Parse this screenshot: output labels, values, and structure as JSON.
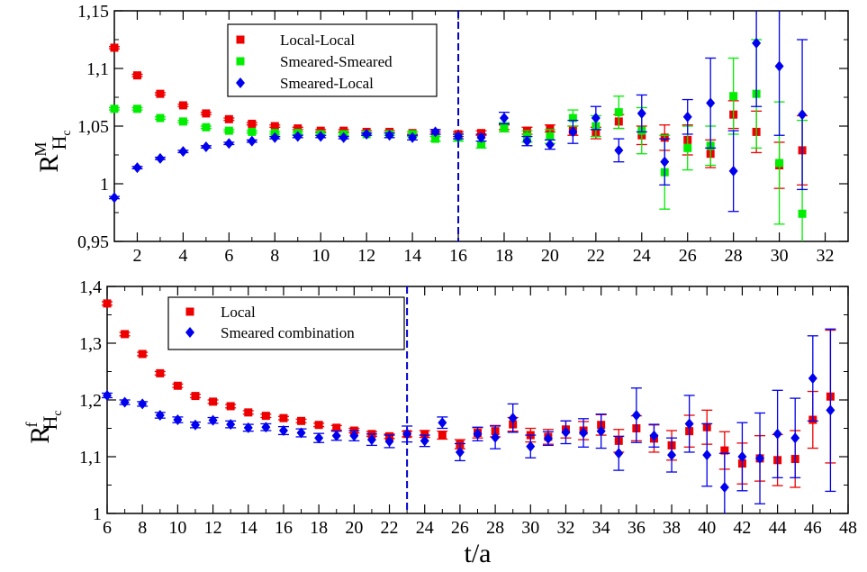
{
  "chart_data": [
    {
      "type": "scatter",
      "xlabel": "",
      "ylabel": "R",
      "ylabel_superscript": "M",
      "ylabel_subscript": "H",
      "ylabel_subsubscript": "c",
      "xlim": [
        1,
        33
      ],
      "ylim": [
        0.95,
        1.15
      ],
      "xticks": [
        2,
        4,
        6,
        8,
        10,
        12,
        14,
        16,
        18,
        20,
        22,
        24,
        26,
        28,
        30,
        32
      ],
      "xtick_labels": [
        "2",
        "4",
        "6",
        "8",
        "10",
        "12",
        "14",
        "16",
        "18",
        "20",
        "22",
        "24",
        "26",
        "28",
        "30",
        "32"
      ],
      "yticks": [
        0.95,
        1.0,
        1.05,
        1.1,
        1.15
      ],
      "ytick_labels": [
        "0,95",
        "1",
        "1,05",
        "1,1",
        "1,15"
      ],
      "vline_x": 16,
      "vline_color": "#0000cc",
      "legend_position": "top-left",
      "series": [
        {
          "name": "Local-Local",
          "marker": "square",
          "color": "#ee0000",
          "x": [
            1,
            2,
            3,
            4,
            5,
            6,
            7,
            8,
            9,
            10,
            11,
            12,
            13,
            14,
            15,
            16,
            17,
            18,
            19,
            20,
            21,
            22,
            23,
            24,
            25,
            26,
            27,
            28,
            29,
            30,
            31
          ],
          "y": [
            1.118,
            1.094,
            1.078,
            1.068,
            1.061,
            1.056,
            1.052,
            1.05,
            1.048,
            1.046,
            1.046,
            1.045,
            1.045,
            1.044,
            1.044,
            1.043,
            1.044,
            1.049,
            1.046,
            1.048,
            1.046,
            1.044,
            1.054,
            1.042,
            1.04,
            1.038,
            1.026,
            1.06,
            1.045,
            1.016,
            1.029
          ],
          "err": [
            0.001,
            0.001,
            0.001,
            0.001,
            0.001,
            0.001,
            0.001,
            0.001,
            0.001,
            0.001,
            0.001,
            0.001,
            0.001,
            0.001,
            0.001,
            0.002,
            0.002,
            0.002,
            0.003,
            0.003,
            0.004,
            0.005,
            0.006,
            0.008,
            0.011,
            0.013,
            0.012,
            0.012,
            0.018,
            0.02,
            0.03
          ]
        },
        {
          "name": "Smeared-Smeared",
          "marker": "square",
          "color": "#00ee00",
          "x": [
            1,
            2,
            3,
            4,
            5,
            6,
            7,
            8,
            9,
            10,
            11,
            12,
            13,
            14,
            15,
            16,
            17,
            18,
            19,
            20,
            21,
            22,
            23,
            24,
            25,
            26,
            27,
            28,
            29,
            30,
            31
          ],
          "y": [
            1.065,
            1.065,
            1.057,
            1.054,
            1.049,
            1.046,
            1.045,
            1.044,
            1.044,
            1.043,
            1.043,
            1.043,
            1.043,
            1.043,
            1.039,
            1.04,
            1.034,
            1.049,
            1.041,
            1.041,
            1.057,
            1.05,
            1.062,
            1.046,
            1.01,
            1.031,
            1.033,
            1.076,
            1.078,
            1.018,
            0.974
          ],
          "err": [
            0.001,
            0.001,
            0.001,
            0.001,
            0.001,
            0.001,
            0.001,
            0.001,
            0.001,
            0.001,
            0.001,
            0.001,
            0.001,
            0.002,
            0.002,
            0.003,
            0.003,
            0.004,
            0.005,
            0.006,
            0.007,
            0.009,
            0.014,
            0.02,
            0.032,
            0.019,
            0.017,
            0.033,
            0.047,
            0.053,
            0.081
          ]
        },
        {
          "name": "Smeared-Local",
          "marker": "diamond",
          "color": "#0000ee",
          "x": [
            1,
            2,
            3,
            4,
            5,
            6,
            7,
            8,
            9,
            10,
            11,
            12,
            13,
            14,
            15,
            16,
            17,
            18,
            19,
            20,
            21,
            22,
            23,
            24,
            25,
            26,
            27,
            28,
            29,
            30,
            31
          ],
          "y": [
            0.988,
            1.014,
            1.022,
            1.028,
            1.032,
            1.035,
            1.037,
            1.04,
            1.041,
            1.041,
            1.04,
            1.043,
            1.042,
            1.04,
            1.045,
            1.041,
            1.04,
            1.057,
            1.037,
            1.034,
            1.045,
            1.057,
            1.029,
            1.061,
            1.019,
            1.058,
            1.07,
            1.011,
            1.122,
            1.102,
            1.06
          ]
        }
      ]
    },
    {
      "type": "scatter",
      "xlabel": "t/a",
      "ylabel": "R",
      "ylabel_superscript": "f",
      "ylabel_subscript": "H",
      "ylabel_subsubscript": "c",
      "xlim": [
        6,
        48
      ],
      "ylim": [
        1.0,
        1.4
      ],
      "xticks": [
        6,
        8,
        10,
        12,
        14,
        16,
        18,
        20,
        22,
        24,
        26,
        28,
        30,
        32,
        34,
        36,
        38,
        40,
        42,
        44,
        46,
        48
      ],
      "xtick_labels": [
        "6",
        "8",
        "10",
        "12",
        "14",
        "16",
        "18",
        "20",
        "22",
        "24",
        "26",
        "28",
        "30",
        "32",
        "34",
        "36",
        "38",
        "40",
        "42",
        "44",
        "46",
        "48"
      ],
      "yticks": [
        1.0,
        1.1,
        1.2,
        1.3,
        1.4
      ],
      "ytick_labels": [
        "1",
        "1,1",
        "1,2",
        "1,3",
        "1,4"
      ],
      "vline_x": 23,
      "vline_color": "#0000cc",
      "legend_position": "top-left",
      "series": [
        {
          "name": "Local",
          "marker": "square",
          "color": "#ee0000",
          "x": [
            6,
            7,
            8,
            9,
            10,
            11,
            12,
            13,
            14,
            15,
            16,
            17,
            18,
            19,
            20,
            21,
            22,
            23,
            24,
            25,
            26,
            27,
            28,
            29,
            30,
            31,
            32,
            33,
            34,
            35,
            36,
            37,
            38,
            39,
            40,
            41,
            42,
            43,
            44,
            45,
            46,
            47
          ],
          "y": [
            1.37,
            1.316,
            1.281,
            1.247,
            1.225,
            1.207,
            1.197,
            1.189,
            1.178,
            1.172,
            1.168,
            1.163,
            1.156,
            1.151,
            1.146,
            1.14,
            1.136,
            1.14,
            1.14,
            1.138,
            1.122,
            1.142,
            1.145,
            1.157,
            1.138,
            1.135,
            1.148,
            1.146,
            1.156,
            1.128,
            1.15,
            1.132,
            1.12,
            1.145,
            1.152,
            1.111,
            1.088,
            1.097,
            1.094,
            1.096,
            1.165,
            1.206
          ],
          "err": [
            0.003,
            0.003,
            0.003,
            0.003,
            0.003,
            0.003,
            0.003,
            0.003,
            0.003,
            0.003,
            0.003,
            0.003,
            0.003,
            0.004,
            0.004,
            0.004,
            0.004,
            0.005,
            0.006,
            0.007,
            0.008,
            0.009,
            0.01,
            0.012,
            0.012,
            0.013,
            0.015,
            0.016,
            0.018,
            0.02,
            0.022,
            0.024,
            0.026,
            0.028,
            0.03,
            0.033,
            0.036,
            0.04,
            0.045,
            0.05,
            0.05,
            0.117
          ]
        },
        {
          "name": "Smeared combination",
          "marker": "diamond",
          "color": "#0000ee",
          "x": [
            6,
            7,
            8,
            9,
            10,
            11,
            12,
            13,
            14,
            15,
            16,
            17,
            18,
            19,
            20,
            21,
            22,
            23,
            24,
            25,
            26,
            27,
            28,
            29,
            30,
            31,
            32,
            33,
            34,
            35,
            36,
            37,
            38,
            39,
            40,
            41,
            42,
            43,
            44,
            45,
            46,
            47
          ],
          "y": [
            1.208,
            1.196,
            1.193,
            1.173,
            1.165,
            1.156,
            1.164,
            1.157,
            1.151,
            1.152,
            1.146,
            1.142,
            1.133,
            1.137,
            1.137,
            1.13,
            1.127,
            1.14,
            1.128,
            1.16,
            1.108,
            1.14,
            1.134,
            1.168,
            1.118,
            1.132,
            1.143,
            1.142,
            1.145,
            1.106,
            1.173,
            1.137,
            1.103,
            1.158,
            1.103,
            1.046,
            1.1,
            1.097,
            1.14,
            1.133,
            1.238,
            1.182
          ],
          "err": [
            0.004,
            0.004,
            0.004,
            0.005,
            0.005,
            0.005,
            0.005,
            0.006,
            0.006,
            0.006,
            0.007,
            0.007,
            0.008,
            0.008,
            0.009,
            0.01,
            0.011,
            0.014,
            0.01,
            0.01,
            0.015,
            0.012,
            0.02,
            0.025,
            0.02,
            0.012,
            0.02,
            0.025,
            0.03,
            0.03,
            0.048,
            0.02,
            0.03,
            0.05,
            0.055,
            0.06,
            0.06,
            0.08,
            0.077,
            0.07,
            0.075,
            0.143
          ]
        }
      ]
    }
  ]
}
